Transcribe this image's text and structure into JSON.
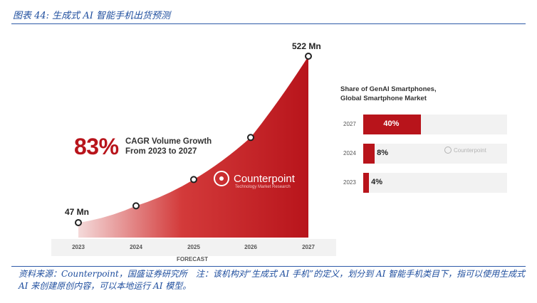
{
  "figure_title": "图表 44: 生成式 AI 智能手机出货预测",
  "source_note": "资料来源：Counterpoint，国盛证券研究所　注：该机构对“生成式 AI 手机”的定义，划分到 AI 智能手机类目下，指可以使用生成式 AI 来创建原创内容，可以本地运行 AI 模型。",
  "brand": {
    "name": "Counterpoint",
    "tagline": "Technology Market Research",
    "small": "Counterpoint"
  },
  "colors": {
    "accent": "#b8141b",
    "title_blue": "#1f4e9e"
  },
  "chart_data": [
    {
      "type": "area",
      "x": [
        "2023",
        "2024",
        "2025",
        "2026",
        "2027"
      ],
      "series": [
        {
          "values": [
            47,
            95,
            170,
            290,
            522
          ]
        }
      ],
      "unit": "Mn",
      "start_label": "47 Mn",
      "end_label": "522 Mn",
      "cagr": {
        "value": "83%",
        "line1": "CAGR Volume Growth",
        "line2": "From 2023 to 2027"
      },
      "xlabel": "FORECAST"
    },
    {
      "type": "bar",
      "title_line1": "Share of GenAI Smartphones,",
      "title_line2": "Global Smartphone Market",
      "categories": [
        "2027",
        "2024",
        "2023"
      ],
      "values": [
        40,
        8,
        4
      ],
      "labels": [
        "40%",
        "8%",
        "4%"
      ]
    }
  ]
}
